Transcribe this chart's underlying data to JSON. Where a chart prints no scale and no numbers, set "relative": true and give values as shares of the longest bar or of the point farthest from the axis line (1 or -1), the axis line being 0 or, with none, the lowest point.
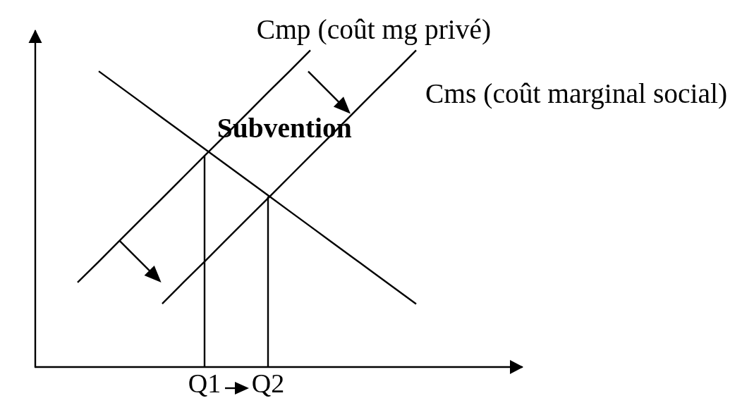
{
  "chart_data": {
    "type": "line",
    "relative": true,
    "categories": [
      null,
      null,
      null,
      null,
      null,
      null,
      null,
      null,
      "Q1",
      null,
      null,
      "Q2",
      null,
      null,
      null,
      null,
      null,
      null,
      null,
      null,
      null,
      null,
      null,
      null
    ],
    "marker": "none",
    "series": [
      {
        "values": [
          null,
          null,
          null,
          0.934,
          0.885,
          0.836,
          0.787,
          0.738,
          0.689,
          0.64,
          0.591,
          0.542,
          0.493,
          0.444,
          0.395,
          0.346,
          0.297,
          0.248,
          0.199,
          null,
          null,
          null,
          null,
          null
        ],
        "color": "#000000"
      },
      {
        "name": "Cmp (coût mg privé)",
        "values": [
          null,
          null,
          0.267,
          0.333,
          0.4,
          0.467,
          0.533,
          0.6,
          0.667,
          0.733,
          0.8,
          0.867,
          0.933,
          1.0,
          null,
          null,
          null,
          null,
          null,
          null,
          null,
          null,
          null,
          null
        ],
        "color": "#000000"
      },
      {
        "name": "Cms (coût marginal social)",
        "values": [
          null,
          null,
          null,
          null,
          null,
          null,
          0.2,
          0.267,
          0.333,
          0.4,
          0.467,
          0.533,
          0.6,
          0.667,
          0.733,
          0.8,
          0.867,
          0.933,
          1.0,
          null,
          null,
          null,
          null,
          null
        ],
        "color": "#000000"
      },
      {
        "x": [
          "Q1",
          "Q1"
        ],
        "values": [
          0,
          0.667
        ],
        "color": "#000000"
      },
      {
        "x": [
          "Q2",
          "Q2"
        ],
        "values": [
          0,
          0.538
        ],
        "color": "#000000"
      }
    ],
    "annotations": [
      "Subvention"
    ]
  }
}
